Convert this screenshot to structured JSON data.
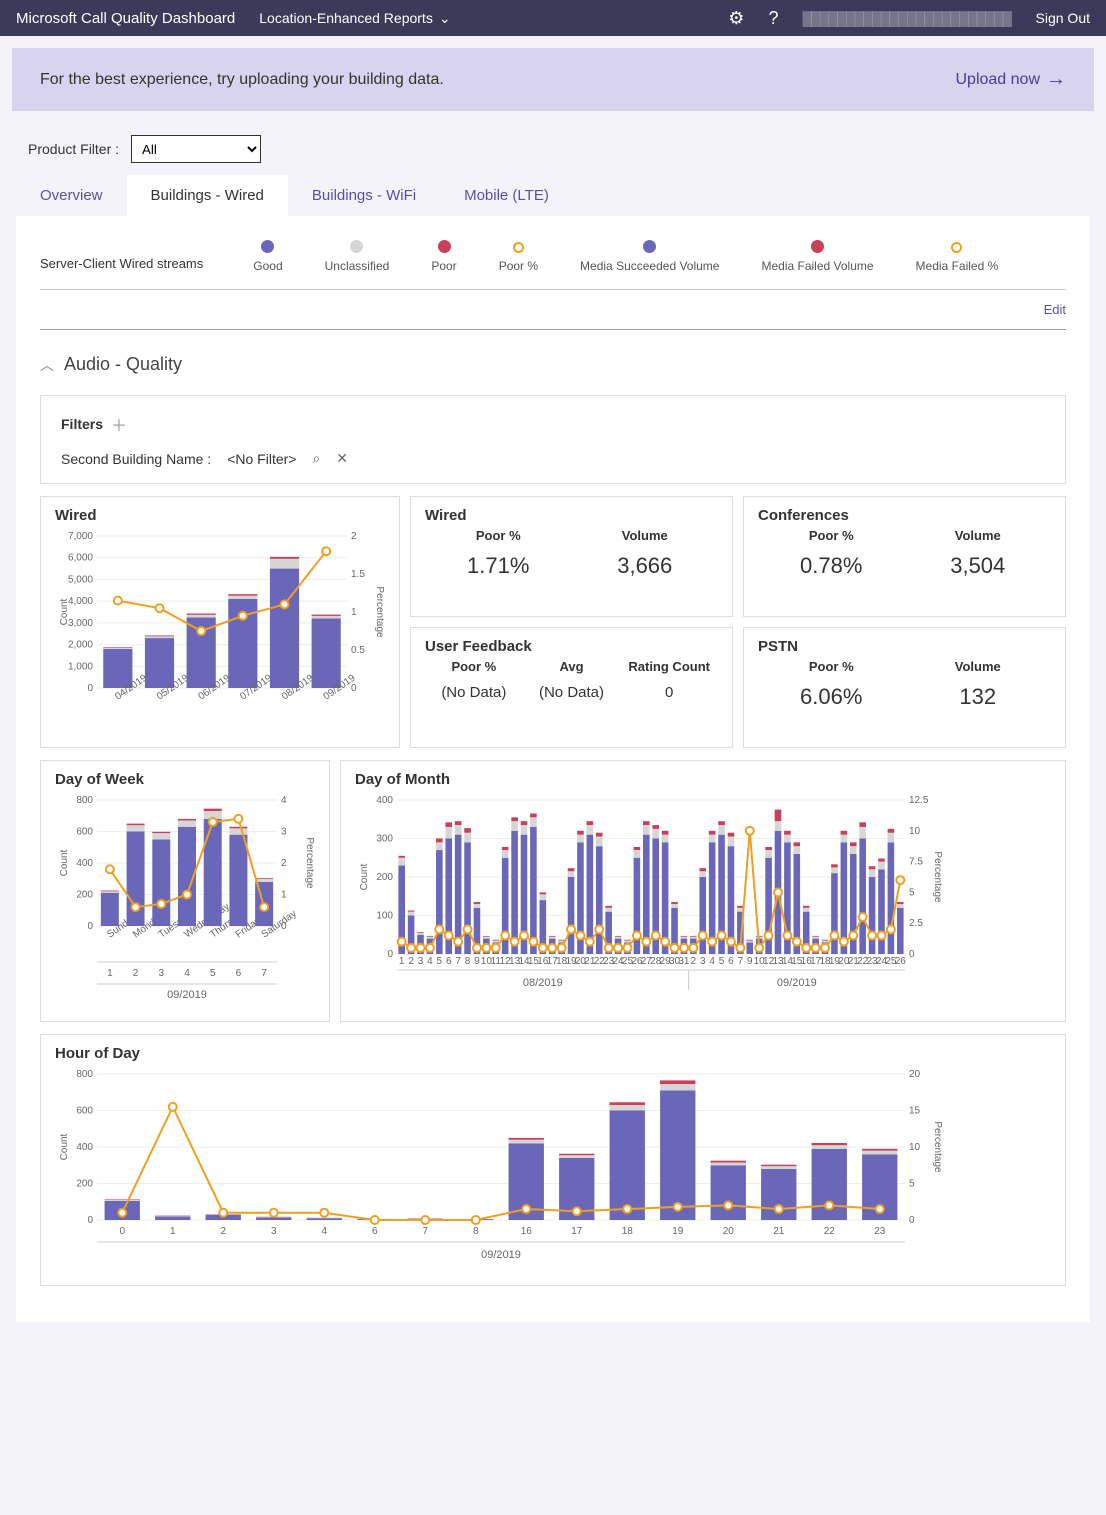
{
  "topbar": {
    "title": "Microsoft Call Quality Dashboard",
    "dropdown": "Location-Enhanced Reports",
    "signout": "Sign Out"
  },
  "banner": {
    "text": "For the best experience, try uploading your building data.",
    "cta": "Upload now"
  },
  "productFilter": {
    "label": "Product Filter :",
    "value": "All"
  },
  "tabs": [
    "Overview",
    "Buildings - Wired",
    "Buildings - WiFi",
    "Mobile (LTE)"
  ],
  "activeTab": 1,
  "streamLabel": "Server-Client Wired streams",
  "legend": [
    {
      "label": "Good",
      "color": "#6b67b8",
      "hollow": false
    },
    {
      "label": "Unclassified",
      "color": "#d6d6d6",
      "hollow": false
    },
    {
      "label": "Poor",
      "color": "#c8405a",
      "hollow": false
    },
    {
      "label": "Poor %",
      "color": "#f0a020",
      "hollow": true
    },
    {
      "label": "Media Succeeded Volume",
      "color": "#6b67b8",
      "hollow": false
    },
    {
      "label": "Media Failed Volume",
      "color": "#c8405a",
      "hollow": false
    },
    {
      "label": "Media Failed %",
      "color": "#f0a020",
      "hollow": true
    }
  ],
  "editLabel": "Edit",
  "sectionTitle": "Audio - Quality",
  "filters": {
    "title": "Filters",
    "field": "Second Building Name :",
    "value": "<No Filter>"
  },
  "colors": {
    "good": "#6b67b8",
    "unc": "#d6d6d6",
    "poor": "#c8405a",
    "line": "#f0a020",
    "grid": "#eeeeee"
  },
  "wiredChart": {
    "title": "Wired",
    "yLeftLabel": "Count",
    "yRightLabel": "Percentage",
    "yLeftMax": 7000,
    "yLeftStep": 1000,
    "yRightMax": 2,
    "yRightStep": 0.5,
    "categories": [
      "04/2019",
      "05/2019",
      "06/2019",
      "07/2019",
      "08/2019",
      "09/2019"
    ],
    "good": [
      1800,
      2300,
      3250,
      4100,
      5500,
      3200
    ],
    "unc": [
      50,
      80,
      120,
      150,
      450,
      120
    ],
    "poor": [
      30,
      40,
      60,
      70,
      90,
      60
    ],
    "pct": [
      1.15,
      1.05,
      0.75,
      0.95,
      1.1,
      1.8
    ]
  },
  "kpiWired": {
    "title": "Wired",
    "poorLabel": "Poor %",
    "volLabel": "Volume",
    "poor": "1.71%",
    "vol": "3,666"
  },
  "kpiConf": {
    "title": "Conferences",
    "poorLabel": "Poor %",
    "volLabel": "Volume",
    "poor": "0.78%",
    "vol": "3,504"
  },
  "kpiFeedback": {
    "title": "User Feedback",
    "poorLabel": "Poor %",
    "avgLabel": "Avg",
    "rcLabel": "Rating Count",
    "poor": "(No Data)",
    "avg": "(No Data)",
    "rc": "0"
  },
  "kpiPSTN": {
    "title": "PSTN",
    "poorLabel": "Poor %",
    "volLabel": "Volume",
    "poor": "6.06%",
    "vol": "132"
  },
  "dowChart": {
    "title": "Day of Week",
    "yLeftLabel": "Count",
    "yRightLabel": "Percentage",
    "yLeftMax": 800,
    "yLeftStep": 200,
    "yRightMax": 4,
    "yRightStep": 1,
    "categories": [
      "Sunday",
      "Monday",
      "Tuesday",
      "Wednesday",
      "Thursday",
      "Friday",
      "Saturday"
    ],
    "nums": [
      "1",
      "2",
      "3",
      "4",
      "5",
      "6",
      "7"
    ],
    "month": "09/2019",
    "good": [
      210,
      600,
      550,
      630,
      680,
      580,
      280
    ],
    "unc": [
      10,
      40,
      40,
      40,
      50,
      40,
      20
    ],
    "poor": [
      5,
      10,
      8,
      10,
      15,
      10,
      5
    ],
    "pct": [
      1.8,
      0.6,
      0.7,
      1.0,
      3.3,
      3.4,
      0.6
    ]
  },
  "domChart": {
    "title": "Day of Month",
    "yLeftLabel": "Count",
    "yRightLabel": "Percentage",
    "yLeftMax": 400,
    "yLeftStep": 100,
    "yRightMax": 12.5,
    "yRightStep": 2.5,
    "months": [
      "08/2019",
      "09/2019"
    ],
    "days1": [
      1,
      2,
      3,
      4,
      5,
      6,
      7,
      8,
      9,
      10,
      11,
      12,
      13,
      14,
      15,
      16,
      17,
      18,
      19,
      20,
      21,
      22,
      23,
      24,
      25,
      26,
      27,
      28,
      29,
      30,
      31
    ],
    "days2": [
      2,
      3,
      4,
      5,
      6,
      7,
      9,
      10,
      12,
      13,
      14,
      15,
      16,
      17,
      18,
      19,
      20,
      21,
      22,
      23,
      24,
      25,
      26
    ],
    "good1": [
      230,
      100,
      50,
      40,
      270,
      300,
      310,
      290,
      120,
      40,
      30,
      250,
      320,
      310,
      330,
      140,
      40,
      30,
      200,
      290,
      310,
      280,
      110,
      40,
      30,
      250,
      310,
      300,
      290,
      120,
      40
    ],
    "good2": [
      40,
      200,
      290,
      310,
      280,
      110,
      30,
      40,
      250,
      320,
      290,
      260,
      110,
      40,
      30,
      210,
      290,
      260,
      300,
      200,
      220,
      290,
      120
    ],
    "unc1": [
      20,
      10,
      5,
      5,
      20,
      30,
      25,
      25,
      10,
      5,
      5,
      20,
      25,
      25,
      25,
      15,
      5,
      5,
      15,
      20,
      25,
      25,
      10,
      5,
      5,
      20,
      25,
      25,
      20,
      10,
      5
    ],
    "unc2": [
      5,
      15,
      20,
      25,
      25,
      10,
      5,
      5,
      20,
      25,
      20,
      20,
      10,
      5,
      5,
      15,
      20,
      20,
      30,
      20,
      20,
      25,
      10
    ],
    "poor1": [
      5,
      3,
      2,
      2,
      10,
      12,
      10,
      12,
      5,
      2,
      2,
      8,
      10,
      10,
      10,
      5,
      2,
      2,
      8,
      10,
      10,
      10,
      5,
      2,
      2,
      8,
      10,
      10,
      10,
      5,
      2
    ],
    "poor2": [
      2,
      8,
      10,
      10,
      10,
      5,
      2,
      2,
      8,
      30,
      10,
      10,
      5,
      2,
      2,
      8,
      10,
      10,
      12,
      8,
      8,
      10,
      5
    ],
    "pct1": [
      1,
      0.5,
      0.5,
      0.5,
      2,
      1.5,
      1,
      2,
      0.5,
      0.5,
      0.5,
      1.5,
      1,
      1.5,
      1,
      0.5,
      0.5,
      0.5,
      2,
      1.5,
      1,
      2,
      0.5,
      0.5,
      0.5,
      1.5,
      1,
      1.5,
      1,
      0.5,
      0.5
    ],
    "pct2": [
      0.5,
      1.5,
      1,
      1.5,
      1,
      0.5,
      10,
      0.5,
      1.5,
      5,
      1.5,
      1,
      0.5,
      0.5,
      0.5,
      1.5,
      1,
      1.5,
      3,
      1.5,
      1.5,
      2,
      6
    ]
  },
  "hodChart": {
    "title": "Hour of Day",
    "yLeftLabel": "Count",
    "yRightLabel": "Percentage",
    "yLeftMax": 800,
    "yLeftStep": 200,
    "yRightMax": 20,
    "yRightStep": 5,
    "month": "09/2019",
    "hours": [
      0,
      1,
      2,
      3,
      4,
      6,
      7,
      8,
      16,
      17,
      18,
      19,
      20,
      21,
      22,
      23
    ],
    "good": [
      105,
      20,
      28,
      15,
      10,
      5,
      8,
      5,
      420,
      340,
      600,
      710,
      300,
      280,
      390,
      360
    ],
    "unc": [
      5,
      2,
      2,
      2,
      1,
      1,
      1,
      1,
      20,
      15,
      30,
      35,
      15,
      15,
      20,
      20
    ],
    "poor": [
      3,
      2,
      2,
      1,
      1,
      0,
      0,
      0,
      10,
      8,
      15,
      20,
      10,
      8,
      12,
      10
    ],
    "pct": [
      1,
      15.5,
      1,
      1,
      1,
      0,
      0,
      0,
      1.5,
      1.2,
      1.5,
      1.8,
      2,
      1.5,
      2,
      1.5
    ]
  }
}
